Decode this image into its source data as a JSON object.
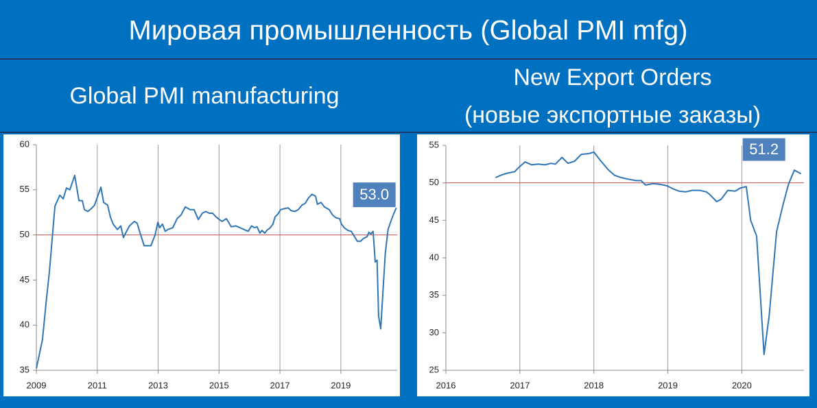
{
  "title": "Мировая промышленность (Global PMI mfg)",
  "chart_data": [
    {
      "type": "line",
      "title": "Global PMI manufacturing",
      "annotation": "53.0",
      "color": "#2e75b6",
      "grid": "x",
      "hline": 50,
      "hline_color": "#c0504d",
      "xlim": [
        2009,
        2020.85
      ],
      "xticks": [
        2009,
        2011,
        2013,
        2015,
        2017,
        2019
      ],
      "ylim": [
        35,
        60
      ],
      "yticks": [
        35,
        40,
        45,
        50,
        55,
        60
      ],
      "x": [
        2009.0,
        2009.2,
        2009.32,
        2009.43,
        2009.61,
        2009.77,
        2009.88,
        2009.99,
        2010.1,
        2010.26,
        2010.4,
        2010.51,
        2010.58,
        2010.69,
        2010.8,
        2010.91,
        2011.12,
        2011.21,
        2011.34,
        2011.43,
        2011.52,
        2011.66,
        2011.77,
        2011.86,
        2011.93,
        2012.06,
        2012.22,
        2012.31,
        2012.4,
        2012.54,
        2012.76,
        2012.9,
        2012.99,
        2013.05,
        2013.14,
        2013.23,
        2013.32,
        2013.48,
        2013.62,
        2013.75,
        2013.89,
        2014.05,
        2014.18,
        2014.32,
        2014.45,
        2014.56,
        2014.68,
        2014.79,
        2014.9,
        2015.01,
        2015.1,
        2015.24,
        2015.4,
        2015.55,
        2015.69,
        2015.82,
        2015.96,
        2016.07,
        2016.16,
        2016.25,
        2016.34,
        2016.41,
        2016.5,
        2016.57,
        2016.68,
        2016.77,
        2016.84,
        2016.93,
        2017.02,
        2017.13,
        2017.27,
        2017.36,
        2017.49,
        2017.6,
        2017.72,
        2017.83,
        2017.94,
        2018.05,
        2018.17,
        2018.23,
        2018.35,
        2018.46,
        2018.62,
        2018.73,
        2018.84,
        2018.96,
        2019.02,
        2019.11,
        2019.23,
        2019.34,
        2019.45,
        2019.54,
        2019.65,
        2019.74,
        2019.86,
        2019.92,
        2019.99,
        2020.06,
        2020.13,
        2020.19,
        2020.24,
        2020.31,
        2020.37,
        2020.46,
        2020.55,
        2020.64,
        2020.73,
        2020.82
      ],
      "values": [
        35.2,
        38.4,
        42.5,
        46,
        53.2,
        54.4,
        54,
        55.2,
        55,
        56.6,
        53.8,
        53.8,
        52.8,
        52.6,
        52.9,
        53.3,
        55.3,
        53.6,
        53.3,
        52,
        51.2,
        50.6,
        51,
        49.7,
        50.2,
        51,
        51.5,
        51.3,
        50.3,
        48.8,
        48.8,
        50,
        51.4,
        50.8,
        51.2,
        50.4,
        50.6,
        50.8,
        51.8,
        52.2,
        53.1,
        52.8,
        52.8,
        51.7,
        52.4,
        52.6,
        52.4,
        52.4,
        52,
        51.7,
        51.5,
        51.8,
        50.9,
        51,
        50.8,
        50.6,
        50.4,
        51,
        50.8,
        50.9,
        50.2,
        50.5,
        50.2,
        50.5,
        50.8,
        51.2,
        52,
        52.3,
        52.8,
        52.9,
        53,
        52.7,
        52.6,
        52.8,
        53.3,
        53.5,
        54.1,
        54.5,
        54.3,
        53.4,
        53.6,
        53.1,
        52.8,
        52.2,
        51.9,
        51.8,
        51.2,
        50.8,
        50.5,
        50.4,
        49.8,
        49.3,
        49.3,
        49.6,
        49.8,
        50.3,
        50.1,
        50.4,
        47,
        47.2,
        41,
        39.6,
        43,
        48,
        50.6,
        51.5,
        52.3,
        53.0
      ]
    },
    {
      "type": "line",
      "title": "New Export Orders",
      "subtitle": "(новые экспортные заказы)",
      "annotation": "51.2",
      "color": "#2e75b6",
      "grid": "x",
      "hline": 50,
      "hline_color": "#c0504d",
      "xlim": [
        2016,
        2020.84
      ],
      "xticks": [
        2016,
        2017,
        2018,
        2019,
        2020
      ],
      "ylim": [
        25,
        55
      ],
      "yticks": [
        25,
        30,
        35,
        40,
        45,
        50,
        55
      ],
      "x": [
        2016.67,
        2016.74,
        2016.83,
        2016.93,
        2016.99,
        2017.07,
        2017.16,
        2017.25,
        2017.34,
        2017.42,
        2017.48,
        2017.57,
        2017.65,
        2017.74,
        2017.83,
        2017.93,
        2018.0,
        2018.08,
        2018.19,
        2018.28,
        2018.37,
        2018.46,
        2018.57,
        2018.64,
        2018.7,
        2018.8,
        2018.9,
        2018.99,
        2019.07,
        2019.15,
        2019.24,
        2019.33,
        2019.43,
        2019.52,
        2019.56,
        2019.66,
        2019.72,
        2019.81,
        2019.91,
        2019.98,
        2020.06,
        2020.12,
        2020.2,
        2020.3,
        2020.37,
        2020.47,
        2020.56,
        2020.63,
        2020.71,
        2020.8
      ],
      "values": [
        50.7,
        51,
        51.3,
        51.5,
        52.1,
        52.8,
        52.4,
        52.5,
        52.4,
        52.6,
        52.5,
        53.4,
        52.6,
        52.9,
        53.8,
        53.9,
        54.1,
        53.1,
        51.8,
        51,
        50.7,
        50.5,
        50.3,
        50.3,
        49.7,
        49.9,
        49.8,
        49.6,
        49.2,
        48.9,
        48.8,
        49,
        49,
        48.8,
        48.5,
        47.5,
        47.8,
        49,
        48.9,
        49.3,
        49.5,
        45,
        42.9,
        27.1,
        32.3,
        43.5,
        47.2,
        49.8,
        51.7,
        51.2
      ]
    }
  ]
}
